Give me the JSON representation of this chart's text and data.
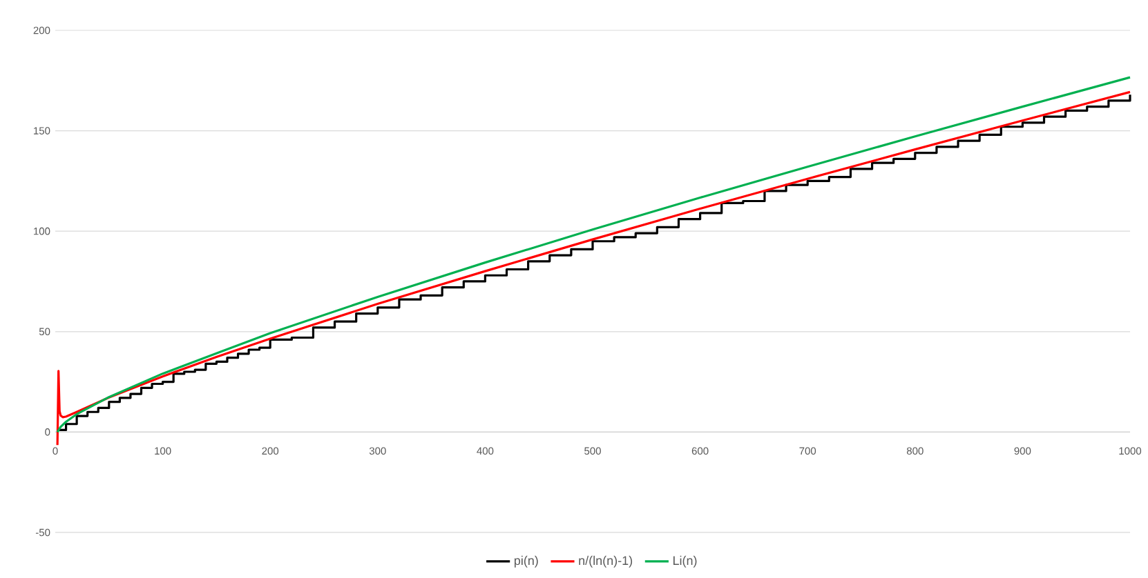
{
  "chart_data": {
    "type": "line",
    "xlim": [
      0,
      1000
    ],
    "ylim": [
      -50,
      200
    ],
    "xticks": [
      0,
      100,
      200,
      300,
      400,
      500,
      600,
      700,
      800,
      900,
      1000
    ],
    "yticks": [
      -50,
      0,
      50,
      100,
      150,
      200
    ],
    "grid": "y",
    "legend": "bottom",
    "series": [
      {
        "name": "pi(n)",
        "type": "step",
        "color": "#000000",
        "x": [
          2,
          10,
          20,
          30,
          40,
          50,
          60,
          70,
          80,
          90,
          100,
          110,
          120,
          130,
          140,
          150,
          160,
          170,
          180,
          190,
          200,
          220,
          240,
          260,
          280,
          300,
          320,
          340,
          360,
          380,
          400,
          420,
          440,
          460,
          480,
          500,
          520,
          540,
          560,
          580,
          600,
          620,
          640,
          660,
          680,
          700,
          720,
          740,
          760,
          780,
          800,
          820,
          840,
          860,
          880,
          900,
          920,
          940,
          960,
          980,
          1000
        ],
        "values": [
          1,
          4,
          8,
          10,
          12,
          15,
          17,
          19,
          22,
          24,
          25,
          29,
          30,
          31,
          34,
          35,
          37,
          39,
          41,
          42,
          46,
          47,
          52,
          55,
          59,
          62,
          66,
          68,
          72,
          75,
          78,
          81,
          85,
          88,
          91,
          95,
          97,
          99,
          102,
          106,
          109,
          114,
          115,
          120,
          123,
          125,
          127,
          131,
          134,
          136,
          139,
          142,
          145,
          148,
          152,
          154,
          157,
          160,
          162,
          165,
          168
        ]
      },
      {
        "name": "n/(ln(n)-1)",
        "color": "#ff0000",
        "x": [
          2,
          3,
          4,
          5,
          7,
          10,
          20,
          50,
          100,
          150,
          200,
          300,
          400,
          500,
          600,
          700,
          800,
          900,
          1000
        ],
        "values": [
          -6.5,
          30.4,
          10.4,
          8.2,
          7.4,
          7.7,
          10,
          17.2,
          27.7,
          37.4,
          46.5,
          63.8,
          80.1,
          95.9,
          111.2,
          126.1,
          140.7,
          155.1,
          169.3
        ]
      },
      {
        "name": "Li(n)",
        "color": "#00b050",
        "x": [
          2,
          5,
          10,
          20,
          50,
          100,
          150,
          200,
          300,
          400,
          500,
          600,
          700,
          800,
          900,
          1000
        ],
        "values": [
          0,
          2.6,
          5.1,
          8.9,
          17.4,
          29.1,
          39.2,
          49.2,
          67.3,
          84.4,
          100.8,
          116.7,
          132.1,
          147.2,
          162,
          176.6
        ]
      }
    ]
  }
}
